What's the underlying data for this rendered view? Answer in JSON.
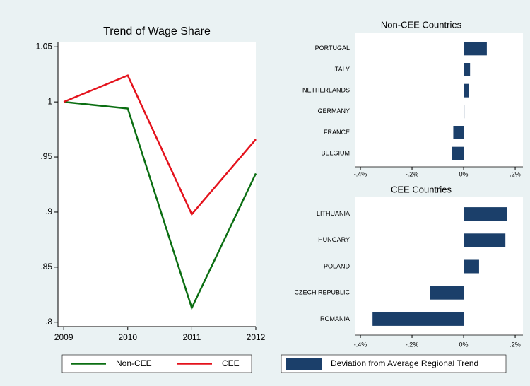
{
  "chart_data": [
    {
      "type": "line",
      "title": "Trend of Wage Share",
      "x": [
        2009,
        2010,
        2011,
        2012
      ],
      "xlim": [
        2008.91,
        2012
      ],
      "xticks": [
        2009,
        2010,
        2011,
        2012
      ],
      "ylim": [
        0.796,
        1.054
      ],
      "yticks": [
        {
          "value": 0.8,
          "label": ".8"
        },
        {
          "value": 0.85,
          "label": ".85"
        },
        {
          "value": 0.9,
          "label": ".9"
        },
        {
          "value": 0.95,
          "label": ".95"
        },
        1,
        1.05
      ],
      "series": [
        {
          "name": "Non-CEE",
          "color": "#0b6e12",
          "values": [
            1,
            0.994,
            0.813,
            0.935
          ]
        },
        {
          "name": "CEE",
          "color": "#e4121c",
          "values": [
            1,
            1.024,
            0.898,
            0.966
          ]
        }
      ]
    },
    {
      "type": "barh",
      "title": "Non-CEE Countries",
      "categories": [
        "PORTUGAL",
        "ITALY",
        "NETHERLANDS",
        "GERMANY",
        "FRANCE",
        "BELGIUM"
      ],
      "series": [
        {
          "name": "Deviation from Average Regional Trend",
          "color": "#1b3f6a",
          "values": [
            0.09,
            0.025,
            0.02,
            0.003,
            -0.04,
            -0.045
          ]
        }
      ],
      "xlim": [
        -0.422,
        0.23
      ],
      "xticks": [
        {
          "value": -0.4,
          "label": "-.4%"
        },
        {
          "value": -0.2,
          "label": "-.2%"
        },
        {
          "value": 0,
          "label": "0%"
        },
        {
          "value": 0.2,
          "label": ".2%"
        }
      ]
    },
    {
      "type": "barh",
      "title": "CEE Countries",
      "categories": [
        "LITHUANIA",
        "HUNGARY",
        "POLAND",
        "CZECH REPUBLIC",
        "ROMANIA"
      ],
      "color": "#1b3f6a",
      "values": [
        0.167,
        0.162,
        0.06,
        -0.129,
        -0.353
      ],
      "xlim": [
        -0.422,
        0.23
      ],
      "xticks": [
        {
          "value": -0.4,
          "label": "-.4%"
        },
        {
          "value": -0.2,
          "label": "-.2%"
        },
        {
          "value": 0,
          "label": "0%"
        },
        {
          "value": 0.2,
          "label": ".2%"
        }
      ]
    }
  ]
}
